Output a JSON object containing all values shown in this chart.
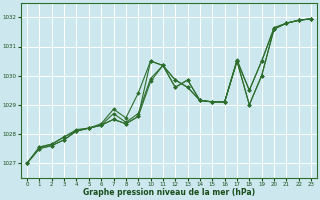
{
  "background_color": "#cce8ee",
  "grid_color": "#ffffff",
  "line_color": "#2d6e2d",
  "text_color": "#1a4d1a",
  "xlabel": "Graphe pression niveau de la mer (hPa)",
  "ylim": [
    1026.5,
    1032.5
  ],
  "xlim": [
    -0.5,
    23.5
  ],
  "yticks": [
    1027,
    1028,
    1029,
    1030,
    1031,
    1032
  ],
  "xticks": [
    0,
    1,
    2,
    3,
    4,
    5,
    6,
    7,
    8,
    9,
    10,
    11,
    12,
    13,
    14,
    15,
    16,
    17,
    18,
    19,
    20,
    21,
    22,
    23
  ],
  "series": [
    [
      1027.0,
      1027.5,
      1027.6,
      1027.8,
      1028.1,
      1028.2,
      1028.3,
      1028.5,
      1028.35,
      1028.6,
      1030.5,
      1030.35,
      1029.85,
      1029.6,
      1029.15,
      1029.1,
      1029.1,
      1030.5,
      1029.0,
      1030.0,
      1031.6,
      1031.8,
      1031.9,
      1031.95
    ],
    [
      1027.0,
      1027.55,
      1027.65,
      1027.9,
      1028.1,
      1028.2,
      1028.3,
      1028.7,
      1028.4,
      1028.7,
      1029.9,
      1030.35,
      1029.6,
      1029.85,
      1029.15,
      1029.1,
      1029.1,
      1030.5,
      1029.5,
      1030.5,
      1031.6,
      1031.8,
      1031.9,
      1031.95
    ],
    [
      1027.0,
      1027.55,
      1027.65,
      1027.9,
      1028.15,
      1028.2,
      1028.35,
      1028.85,
      1028.55,
      1029.4,
      1030.5,
      1030.35,
      1029.85,
      1029.6,
      1029.15,
      1029.1,
      1029.1,
      1030.55,
      1029.5,
      1030.5,
      1031.65,
      1031.8,
      1031.9,
      1031.95
    ],
    [
      1027.0,
      1027.5,
      1027.6,
      1027.8,
      1028.1,
      1028.2,
      1028.3,
      1028.5,
      1028.35,
      1028.6,
      1029.8,
      1030.35,
      1029.6,
      1029.85,
      1029.15,
      1029.1,
      1029.1,
      1030.5,
      1029.0,
      1030.0,
      1031.6,
      1031.8,
      1031.9,
      1031.95
    ]
  ],
  "xtick_labels": [
    "0",
    "1",
    "2",
    "3",
    "4",
    "5",
    "6",
    "7",
    "8",
    "9",
    "10",
    "11",
    "12",
    "13",
    "14",
    "15",
    "16",
    "17",
    "18",
    "19",
    "20",
    "21",
    "22",
    "23"
  ]
}
